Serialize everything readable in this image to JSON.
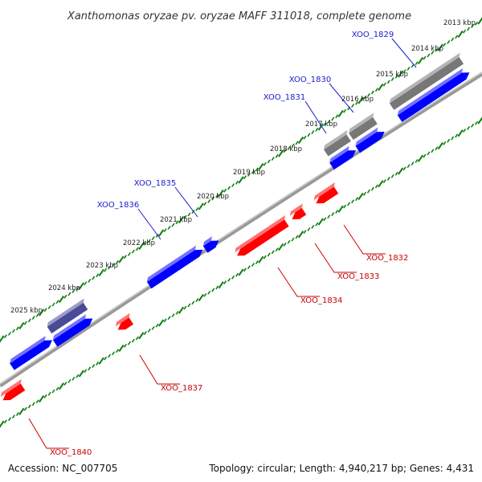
{
  "title": "Xanthomonas oryzae pv. oryzae MAFF 311018, complete genome",
  "footer": {
    "accession": "Accession: NC_007705",
    "topology": "Topology: circular; Length: 4,940,217 bp; Genes: 4,431"
  },
  "colors": {
    "forward_gene": "#0000ff",
    "reverse_gene": "#ff0000",
    "forward_label": "#1a1acc",
    "reverse_label": "#cc0000",
    "backbone": "#888888",
    "tick": "#0f7f0f",
    "gray_feature": "#777777",
    "purple_feature": "#4a4a99"
  },
  "kbp_labels": [
    "2013 kbp",
    "2014 kbp",
    "2015 kbp",
    "2016 kbp",
    "2017 kbp",
    "2018 kbp",
    "2019 kbp",
    "2020 kbp",
    "2021 kbp",
    "2022 kbp",
    "2023 kbp",
    "2024 kbp",
    "2025 kbp"
  ],
  "genes": [
    {
      "name": "XOO_1829",
      "strand": "forward"
    },
    {
      "name": "XOO_1830",
      "strand": "forward"
    },
    {
      "name": "XOO_1831",
      "strand": "forward"
    },
    {
      "name": "XOO_1832",
      "strand": "reverse"
    },
    {
      "name": "XOO_1833",
      "strand": "reverse"
    },
    {
      "name": "XOO_1834",
      "strand": "reverse"
    },
    {
      "name": "XOO_1835",
      "strand": "forward"
    },
    {
      "name": "XOO_1836",
      "strand": "forward"
    },
    {
      "name": "XOO_1837",
      "strand": "reverse"
    },
    {
      "name": "XOO_1840",
      "strand": "reverse"
    }
  ]
}
